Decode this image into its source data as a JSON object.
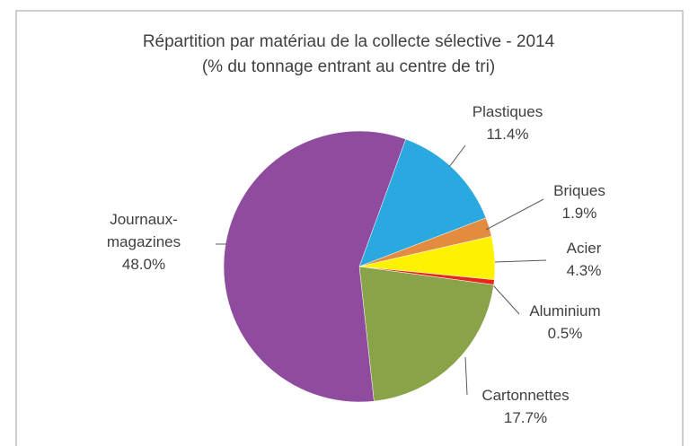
{
  "chart_data": {
    "type": "pie",
    "title": "Répartition par matériau de la collecte sélective - 2014",
    "subtitle": "(% du tonnage entrant au centre de tri)",
    "categories": [
      "Plastiques",
      "Briques",
      "Acier",
      "Aluminium",
      "Cartonnettes",
      "Journaux-magazines"
    ],
    "values": [
      11.4,
      1.9,
      4.3,
      0.5,
      17.7,
      48.0
    ],
    "value_labels": [
      "11.4%",
      "1.9%",
      "4.3%",
      "0.5%",
      "17.7%",
      "48.0%"
    ],
    "colors": [
      "#2aa9e1",
      "#e38b3e",
      "#fff200",
      "#e8261c",
      "#89a448",
      "#8f4c9f"
    ]
  }
}
